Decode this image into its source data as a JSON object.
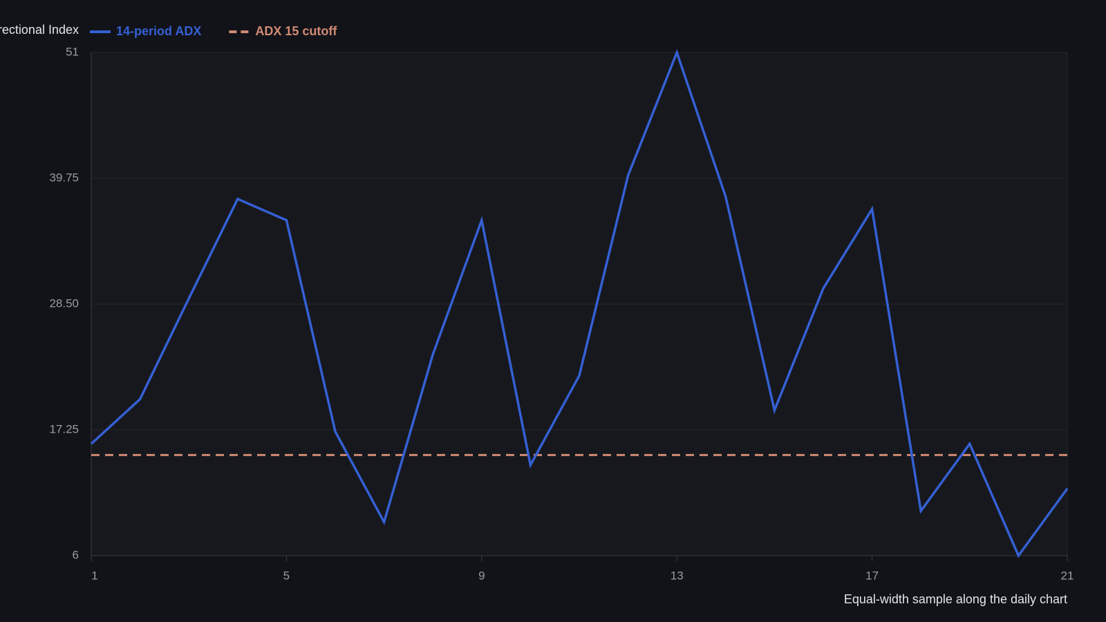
{
  "chart_data": {
    "type": "line",
    "ylabel": "Average Directional Index",
    "xlabel": "Equal-width sample along the daily chart",
    "x": [
      1,
      2,
      3,
      4,
      5,
      6,
      7,
      8,
      9,
      10,
      11,
      12,
      13,
      14,
      15,
      16,
      17,
      18,
      19,
      20,
      21
    ],
    "series": [
      {
        "name": "14-period ADX",
        "color": "#3560d4",
        "values": [
          16.0,
          20.0,
          29.0,
          37.9,
          36.0,
          17.1,
          9.0,
          24.0,
          36.0,
          14.1,
          22.1,
          40.0,
          51.0,
          38.1,
          19.0,
          29.9,
          37.0,
          10.0,
          16.0,
          6.0,
          12.0
        ]
      }
    ],
    "threshold": {
      "name": "ADX 15 cutoff",
      "value": 15,
      "color": "#d08a74",
      "dashed": true
    },
    "xlim": [
      1,
      21
    ],
    "xticks": [
      1,
      5,
      9,
      13,
      17,
      21
    ],
    "ylim": [
      6,
      51
    ],
    "yticks": [
      6,
      17.25,
      {
        "value": 28.5,
        "label": "28.50"
      },
      39.75,
      51
    ],
    "grid": true
  }
}
